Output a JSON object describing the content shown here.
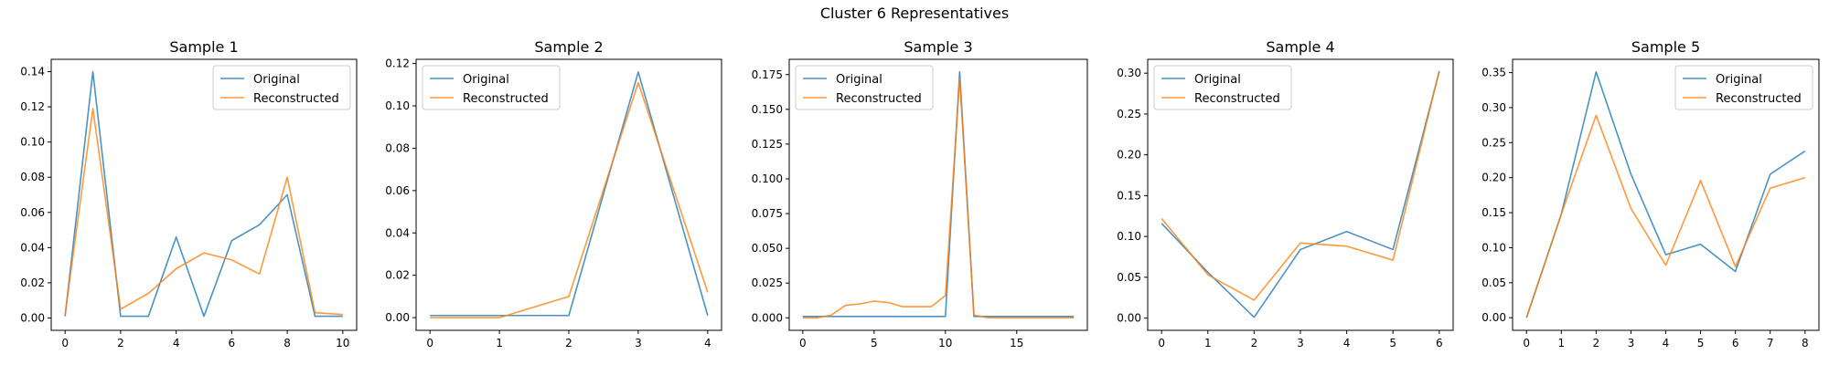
{
  "figure": {
    "title": "Cluster 6 Representatives",
    "colors": {
      "original": "#1f77b4",
      "reconstructed": "#ff7f0e"
    }
  },
  "chart_data": [
    {
      "type": "line",
      "title": "Sample 1",
      "xlim": [
        -0.5,
        10.5
      ],
      "ylim": [
        -0.007,
        0.147
      ],
      "xticks": [
        0,
        2,
        4,
        6,
        8,
        10
      ],
      "xtick_labels": [
        "0",
        "2",
        "4",
        "6",
        "8",
        "10"
      ],
      "yticks": [
        0,
        0.02,
        0.04,
        0.06,
        0.08,
        0.1,
        0.12,
        0.14
      ],
      "ytick_labels": [
        "0.00",
        "0.02",
        "0.04",
        "0.06",
        "0.08",
        "0.10",
        "0.12",
        "0.14"
      ],
      "legend": "upper right",
      "x": [
        0,
        1,
        2,
        3,
        4,
        5,
        6,
        7,
        8,
        9,
        10
      ],
      "series": [
        {
          "name": "Original",
          "values": [
            0.001,
            0.14,
            0.001,
            0.001,
            0.046,
            0.001,
            0.044,
            0.053,
            0.07,
            0.001,
            0.001
          ]
        },
        {
          "name": "Reconstructed",
          "values": [
            0.002,
            0.119,
            0.005,
            0.014,
            0.028,
            0.037,
            0.033,
            0.025,
            0.08,
            0.003,
            0.002
          ]
        }
      ]
    },
    {
      "type": "line",
      "title": "Sample 2",
      "xlim": [
        -0.2,
        4.2
      ],
      "ylim": [
        -0.006,
        0.122
      ],
      "xticks": [
        0,
        1,
        2,
        3,
        4
      ],
      "xtick_labels": [
        "0",
        "1",
        "2",
        "3",
        "4"
      ],
      "yticks": [
        0,
        0.02,
        0.04,
        0.06,
        0.08,
        0.1,
        0.12
      ],
      "ytick_labels": [
        "0.00",
        "0.02",
        "0.04",
        "0.06",
        "0.08",
        "0.10",
        "0.12"
      ],
      "legend": "upper left",
      "x": [
        0,
        1,
        2,
        3,
        4
      ],
      "series": [
        {
          "name": "Original",
          "values": [
            0.001,
            0.001,
            0.001,
            0.116,
            0.001
          ]
        },
        {
          "name": "Reconstructed",
          "values": [
            0.0,
            0.0,
            0.01,
            0.111,
            0.012
          ]
        }
      ]
    },
    {
      "type": "line",
      "title": "Sample 3",
      "xlim": [
        -0.95,
        19.95
      ],
      "ylim": [
        -0.009,
        0.186
      ],
      "xticks": [
        0,
        5,
        10,
        15
      ],
      "xtick_labels": [
        "0",
        "5",
        "10",
        "15"
      ],
      "yticks": [
        0,
        0.025,
        0.05,
        0.075,
        0.1,
        0.125,
        0.15,
        0.175
      ],
      "ytick_labels": [
        "0.000",
        "0.025",
        "0.050",
        "0.075",
        "0.100",
        "0.125",
        "0.150",
        "0.175"
      ],
      "legend": "upper left",
      "x": [
        0,
        1,
        2,
        3,
        4,
        5,
        6,
        7,
        8,
        9,
        10,
        11,
        12,
        13,
        14,
        15,
        16,
        17,
        18,
        19
      ],
      "series": [
        {
          "name": "Original",
          "values": [
            0.001,
            0.001,
            0.001,
            0.001,
            0.001,
            0.001,
            0.001,
            0.001,
            0.001,
            0.001,
            0.001,
            0.177,
            0.001,
            0.001,
            0.001,
            0.001,
            0.001,
            0.001,
            0.001,
            0.001
          ]
        },
        {
          "name": "Reconstructed",
          "values": [
            0.0,
            0.0,
            0.002,
            0.009,
            0.01,
            0.012,
            0.011,
            0.008,
            0.008,
            0.008,
            0.016,
            0.172,
            0.002,
            0.0,
            0.0,
            0.0,
            0.0,
            0.0,
            0.0,
            0.0
          ]
        }
      ]
    },
    {
      "type": "line",
      "title": "Sample 4",
      "xlim": [
        -0.3,
        6.3
      ],
      "ylim": [
        -0.015,
        0.317
      ],
      "xticks": [
        0,
        1,
        2,
        3,
        4,
        5,
        6
      ],
      "xtick_labels": [
        "0",
        "1",
        "2",
        "3",
        "4",
        "5",
        "6"
      ],
      "yticks": [
        0,
        0.05,
        0.1,
        0.15,
        0.2,
        0.25,
        0.3
      ],
      "ytick_labels": [
        "0.00",
        "0.05",
        "0.10",
        "0.15",
        "0.20",
        "0.25",
        "0.30"
      ],
      "legend": "upper left",
      "x": [
        0,
        1,
        2,
        3,
        4,
        5,
        6
      ],
      "series": [
        {
          "name": "Original",
          "values": [
            0.116,
            0.056,
            0.001,
            0.084,
            0.106,
            0.084,
            0.302
          ]
        },
        {
          "name": "Reconstructed",
          "values": [
            0.122,
            0.053,
            0.022,
            0.092,
            0.088,
            0.071,
            0.303
          ]
        }
      ]
    },
    {
      "type": "line",
      "title": "Sample 5",
      "xlim": [
        -0.4,
        8.4
      ],
      "ylim": [
        -0.018,
        0.369
      ],
      "xticks": [
        0,
        1,
        2,
        3,
        4,
        5,
        6,
        7,
        8
      ],
      "xtick_labels": [
        "0",
        "1",
        "2",
        "3",
        "4",
        "5",
        "6",
        "7",
        "8"
      ],
      "yticks": [
        0,
        0.05,
        0.1,
        0.15,
        0.2,
        0.25,
        0.3,
        0.35
      ],
      "ytick_labels": [
        "0.00",
        "0.05",
        "0.10",
        "0.15",
        "0.20",
        "0.25",
        "0.30",
        "0.35"
      ],
      "legend": "upper right",
      "x": [
        0,
        1,
        2,
        3,
        4,
        5,
        6,
        7,
        8
      ],
      "series": [
        {
          "name": "Original",
          "values": [
            0.0,
            0.148,
            0.351,
            0.205,
            0.09,
            0.105,
            0.066,
            0.205,
            0.238
          ]
        },
        {
          "name": "Reconstructed",
          "values": [
            0.0,
            0.148,
            0.289,
            0.156,
            0.075,
            0.196,
            0.073,
            0.185,
            0.2
          ]
        }
      ]
    }
  ]
}
